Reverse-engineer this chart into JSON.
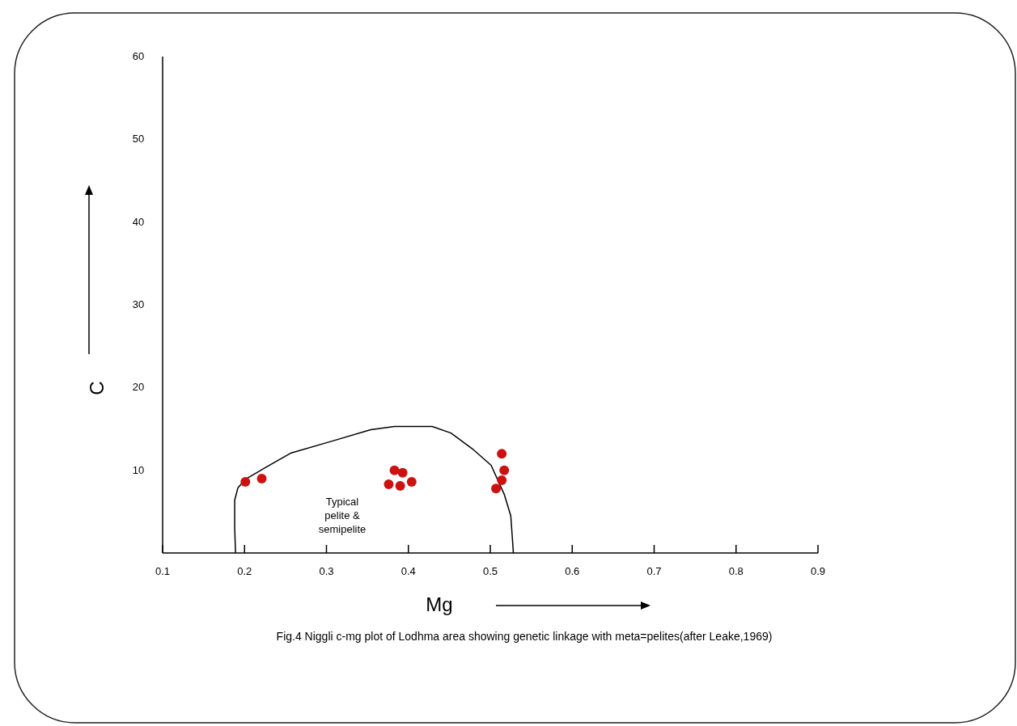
{
  "chart_data": {
    "type": "scatter",
    "xlabel": "Mg",
    "ylabel": "C",
    "xlim": [
      0.1,
      0.9
    ],
    "ylim": [
      0,
      60
    ],
    "xticks": [
      0.1,
      0.2,
      0.3,
      0.4,
      0.5,
      0.6,
      0.7,
      0.8,
      0.9
    ],
    "yticks": [
      10,
      20,
      30,
      40,
      50,
      60
    ],
    "grid": false,
    "series": [
      {
        "type": "line",
        "marker": "none",
        "color": "#000000",
        "x": [
          0.189,
          0.188,
          0.188,
          0.192,
          0.201,
          0.225,
          0.257,
          0.306,
          0.354,
          0.383,
          0.429,
          0.452,
          0.478,
          0.501,
          0.517,
          0.525,
          0.528,
          0.528
        ],
        "values": [
          0,
          3,
          6.4,
          7.9,
          8.9,
          10.3,
          12.1,
          13.5,
          14.9,
          15.3,
          15.3,
          14.5,
          12.6,
          10.6,
          7.1,
          4.5,
          0.3,
          0
        ]
      },
      {
        "marker": "circle",
        "color": "#cc1111",
        "x": [
          0.201,
          0.221,
          0.383,
          0.393,
          0.376,
          0.39,
          0.404,
          0.514,
          0.517,
          0.514,
          0.507
        ],
        "values": [
          8.6,
          9.0,
          10.0,
          9.7,
          8.3,
          8.1,
          8.6,
          12.0,
          10.0,
          8.8,
          7.8
        ]
      }
    ],
    "annotations": [
      "Typical pelite & semipelite",
      "Fig.4 Niggli c-mg plot of Lodhma area showing genetic linkage with meta=pelites(after Leake,1969)"
    ]
  }
}
